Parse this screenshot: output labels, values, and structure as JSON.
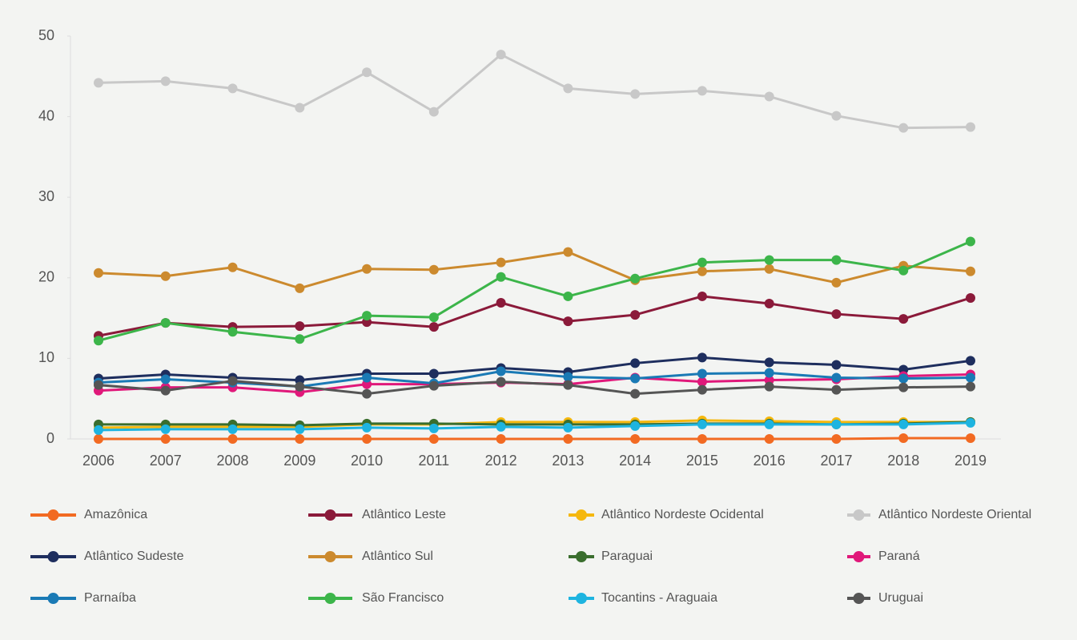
{
  "chart_data": {
    "type": "line",
    "categories": [
      "2006",
      "2007",
      "2008",
      "2009",
      "2010",
      "2011",
      "2012",
      "2013",
      "2014",
      "2015",
      "2016",
      "2017",
      "2018",
      "2019"
    ],
    "ylim": [
      0,
      50
    ],
    "yticks": [
      0,
      10,
      20,
      30,
      40,
      50
    ],
    "grid": false,
    "series": [
      {
        "name": "Amazônica",
        "color": "#f26a22",
        "values": [
          0.0,
          0.0,
          0.0,
          0.0,
          0.0,
          0.0,
          0.0,
          0.0,
          0.0,
          0.0,
          0.0,
          0.0,
          0.1,
          0.1
        ]
      },
      {
        "name": "Atlântico Leste",
        "color": "#8b1a3a",
        "values": [
          12.8,
          14.4,
          13.9,
          14.0,
          14.5,
          13.9,
          16.9,
          14.6,
          15.4,
          17.7,
          16.8,
          15.5,
          14.9,
          17.5
        ]
      },
      {
        "name": "Atlântico Nordeste Ocidental",
        "color": "#f5b80f",
        "values": [
          1.4,
          1.5,
          1.5,
          1.5,
          1.8,
          1.8,
          2.1,
          2.1,
          2.1,
          2.3,
          2.2,
          2.1,
          2.1,
          2.1
        ]
      },
      {
        "name": "Atlântico Nordeste Oriental",
        "color": "#c8c8c8",
        "values": [
          44.2,
          44.4,
          43.5,
          41.1,
          45.5,
          40.6,
          47.7,
          43.5,
          42.8,
          43.2,
          42.5,
          40.1,
          38.6,
          38.7
        ]
      },
      {
        "name": "Atlântico Sudeste",
        "color": "#1e2e5e",
        "values": [
          7.5,
          8.0,
          7.6,
          7.3,
          8.1,
          8.1,
          8.8,
          8.3,
          9.4,
          10.1,
          9.5,
          9.2,
          8.6,
          9.7
        ]
      },
      {
        "name": "Atlântico Sul",
        "color": "#cc8a2e",
        "values": [
          20.6,
          20.2,
          21.3,
          18.7,
          21.1,
          21.0,
          21.9,
          23.2,
          19.7,
          20.8,
          21.1,
          19.4,
          21.5,
          20.8
        ]
      },
      {
        "name": "Paraguai",
        "color": "#3a6e2e",
        "values": [
          1.8,
          1.8,
          1.8,
          1.7,
          1.9,
          1.9,
          1.8,
          1.8,
          1.8,
          1.9,
          1.9,
          1.8,
          1.9,
          2.1
        ]
      },
      {
        "name": "Paraná",
        "color": "#e0187a",
        "values": [
          6.0,
          6.4,
          6.4,
          5.8,
          6.8,
          6.8,
          7.0,
          6.8,
          7.6,
          7.1,
          7.3,
          7.4,
          7.8,
          8.0
        ]
      },
      {
        "name": "Parnaíba",
        "color": "#1a7ab5",
        "values": [
          7.0,
          7.4,
          7.0,
          6.5,
          7.6,
          6.9,
          8.4,
          7.7,
          7.5,
          8.1,
          8.2,
          7.6,
          7.5,
          7.6
        ]
      },
      {
        "name": "São Francisco",
        "color": "#3cb54a",
        "values": [
          12.2,
          14.4,
          13.3,
          12.4,
          15.3,
          15.1,
          20.1,
          17.7,
          19.9,
          21.9,
          22.2,
          22.2,
          20.9,
          24.5
        ]
      },
      {
        "name": "Tocantins - Araguaia",
        "color": "#1eb4e0",
        "values": [
          1.1,
          1.2,
          1.2,
          1.2,
          1.4,
          1.3,
          1.5,
          1.4,
          1.6,
          1.8,
          1.8,
          1.8,
          1.8,
          2.0
        ]
      },
      {
        "name": "Uruguai",
        "color": "#555555",
        "values": [
          6.7,
          6.0,
          7.2,
          6.5,
          5.6,
          6.6,
          7.1,
          6.7,
          5.6,
          6.1,
          6.5,
          6.1,
          6.4,
          6.5
        ]
      }
    ]
  }
}
